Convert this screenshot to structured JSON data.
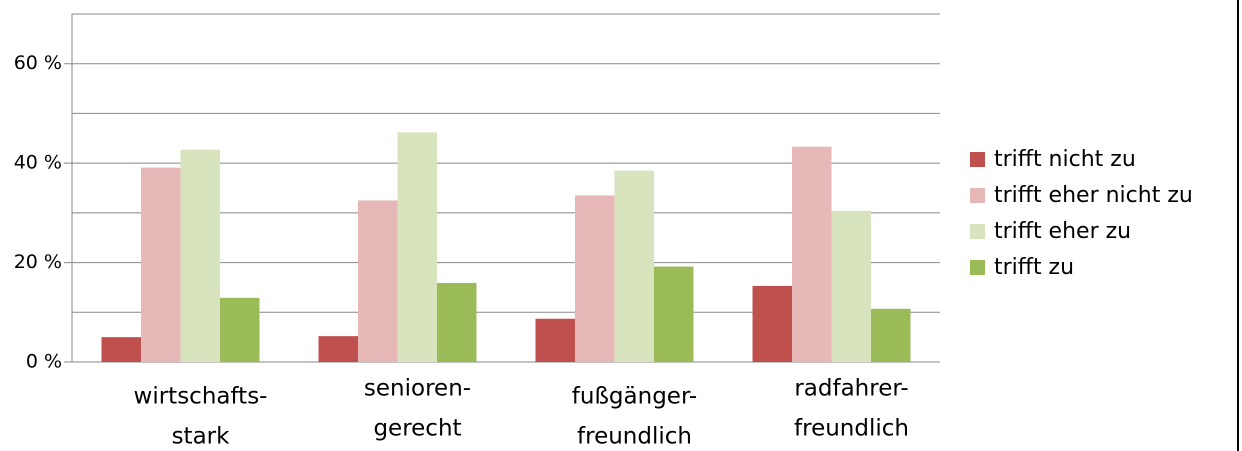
{
  "chart_data": {
    "type": "bar",
    "categories": [
      [
        "wirtschafts-",
        "stark"
      ],
      [
        "senioren-",
        "gerecht"
      ],
      [
        "fußgänger-",
        "freundlich"
      ],
      [
        "radfahrer-",
        "freundlich"
      ]
    ],
    "series": [
      {
        "name": "trifft nicht zu",
        "color": "#c0504d",
        "values": [
          5.0,
          5.2,
          8.7,
          15.3
        ]
      },
      {
        "name": "trifft eher nicht zu",
        "color": "#e6b9b8",
        "values": [
          39.1,
          32.5,
          33.5,
          43.3
        ]
      },
      {
        "name": "trifft eher zu",
        "color": "#d7e4bd",
        "values": [
          42.7,
          46.2,
          38.5,
          30.4
        ]
      },
      {
        "name": "trifft zu",
        "color": "#9bbb59",
        "values": [
          12.9,
          15.9,
          19.2,
          10.7
        ]
      }
    ],
    "ylim": [
      0,
      70
    ],
    "yticks": [
      {
        "value": 0,
        "label": "0 %"
      },
      {
        "value": 20,
        "label": "20 %"
      },
      {
        "value": 40,
        "label": "40 %"
      },
      {
        "value": 60,
        "label": "60 %"
      }
    ],
    "minor_yticks": [
      10,
      30,
      50,
      70
    ],
    "grid": true,
    "legend": "right"
  }
}
